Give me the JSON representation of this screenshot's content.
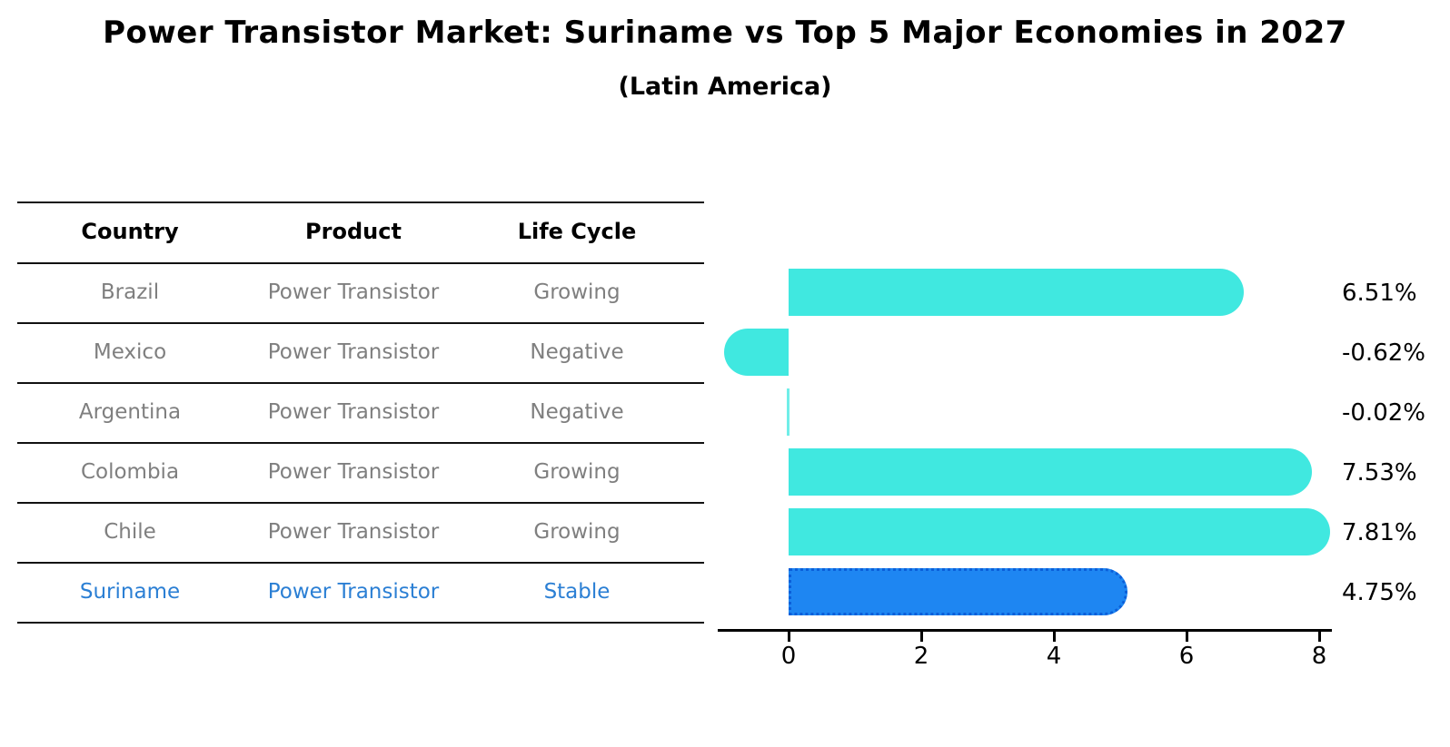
{
  "header": {
    "title": "Power Transistor Market: Suriname vs Top 5 Major Economies in 2027",
    "subtitle": "(Latin America)"
  },
  "table": {
    "columns": [
      "Country",
      "Product",
      "Life Cycle"
    ],
    "rows": [
      {
        "country": "Brazil",
        "product": "Power Transistor",
        "life_cycle": "Growing",
        "highlighted": false
      },
      {
        "country": "Mexico",
        "product": "Power Transistor",
        "life_cycle": "Negative",
        "highlighted": false
      },
      {
        "country": "Argentina",
        "product": "Power Transistor",
        "life_cycle": "Negative",
        "highlighted": false
      },
      {
        "country": "Colombia",
        "product": "Power Transistor",
        "life_cycle": "Growing",
        "highlighted": false
      },
      {
        "country": "Chile",
        "product": "Power Transistor",
        "life_cycle": "Growing",
        "highlighted": false
      },
      {
        "country": "Suriname",
        "product": "Power Transistor",
        "life_cycle": "Stable",
        "highlighted": true
      }
    ]
  },
  "chart_data": {
    "type": "bar",
    "orientation": "horizontal",
    "title": "Power Transistor Market: Suriname vs Top 5 Major Economies in 2027",
    "subtitle": "(Latin America)",
    "categories": [
      "Brazil",
      "Mexico",
      "Argentina",
      "Colombia",
      "Chile",
      "Suriname"
    ],
    "values": [
      6.51,
      -0.62,
      -0.02,
      7.53,
      7.81,
      4.75
    ],
    "value_labels": [
      "6.51%",
      "-0.62%",
      "-0.02%",
      "7.53%",
      "7.81%",
      "4.75%"
    ],
    "x_ticks": [
      "0",
      "2",
      "4",
      "6",
      "8"
    ],
    "x_tick_values": [
      0,
      2,
      4,
      6,
      8
    ],
    "xlim": [
      -1.1,
      8.2
    ],
    "grid": false,
    "legend": "none",
    "highlight_index": 5,
    "bar_color": "#40E8E0",
    "highlight_bar_color": "#1E86F2",
    "highlight_border_color": "#0B5FD9"
  },
  "theme": {
    "background": "#FFFFFF",
    "row_text_color": "#7F7F7F",
    "highlight_text_color": "#2B7FD4",
    "header_text_color": "#000000",
    "axis_color": "#000000",
    "table_line_color": "#111111"
  }
}
